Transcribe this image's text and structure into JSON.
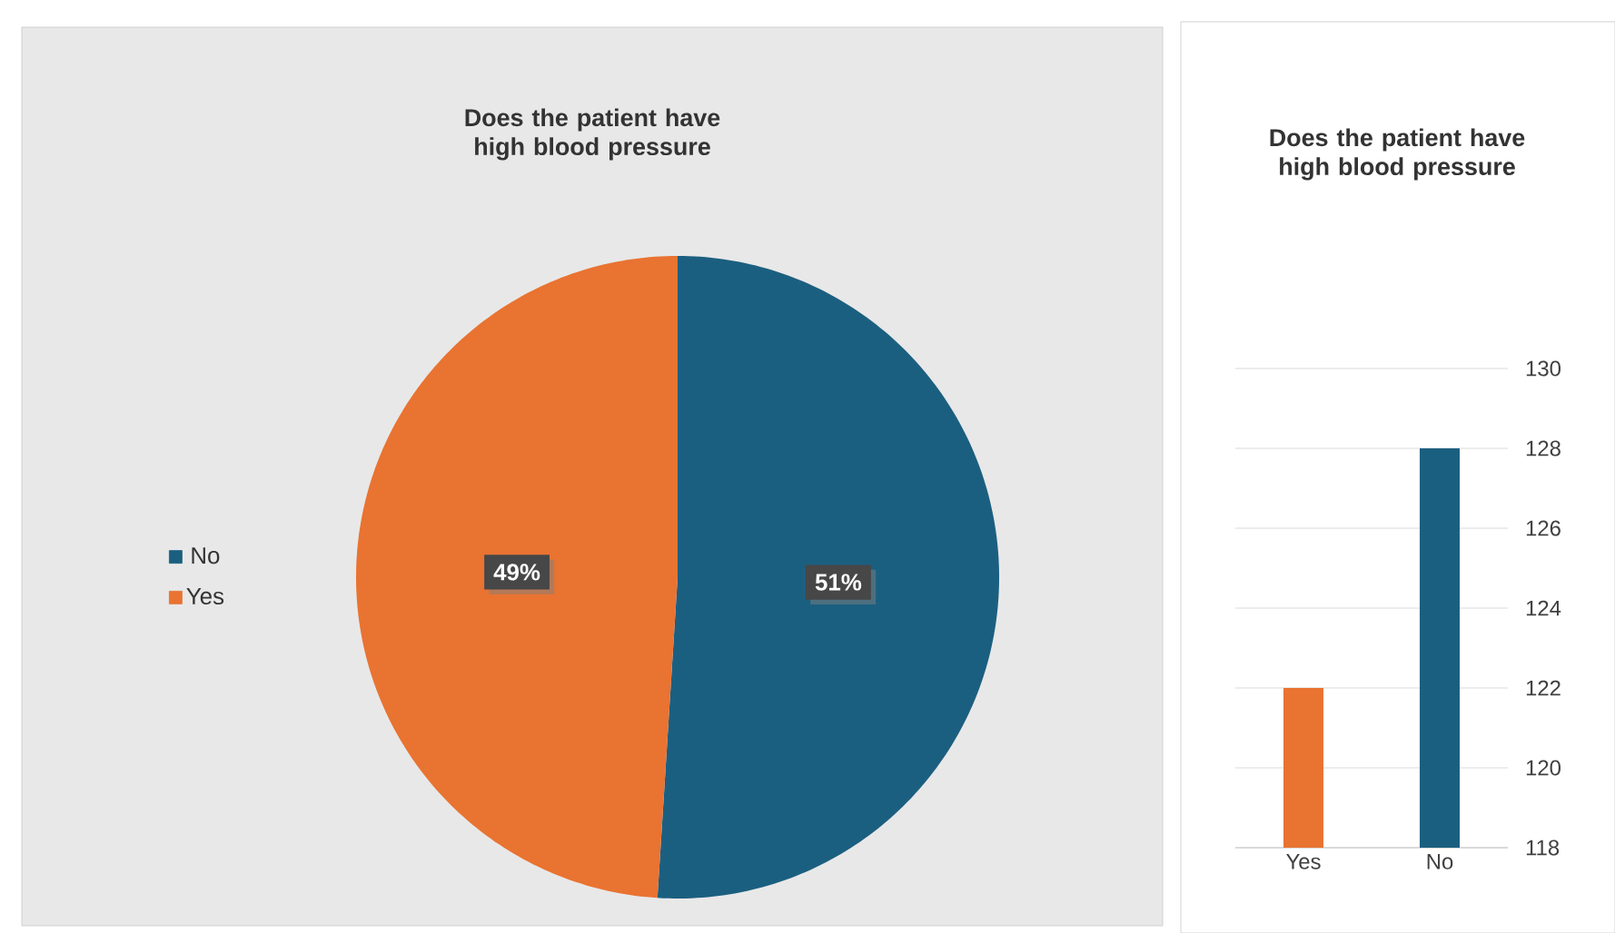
{
  "chart_data": [
    {
      "type": "pie",
      "title": "Does the patient have high blood pressure",
      "categories": [
        "No",
        "Yes"
      ],
      "values": [
        51,
        49
      ],
      "colors": [
        "#1b5f80",
        "#e97331"
      ],
      "value_labels": [
        "51%",
        "49%"
      ],
      "legend": "left"
    },
    {
      "type": "bar",
      "title": "Does the patient have high blood pressure",
      "categories": [
        "Yes",
        "No"
      ],
      "values": [
        122,
        128
      ],
      "colors": [
        "#e97331",
        "#1b5f80"
      ],
      "ylim": [
        118,
        130
      ],
      "yticks": [
        118,
        120,
        122,
        124,
        126,
        128,
        130
      ],
      "grid": "y"
    }
  ]
}
